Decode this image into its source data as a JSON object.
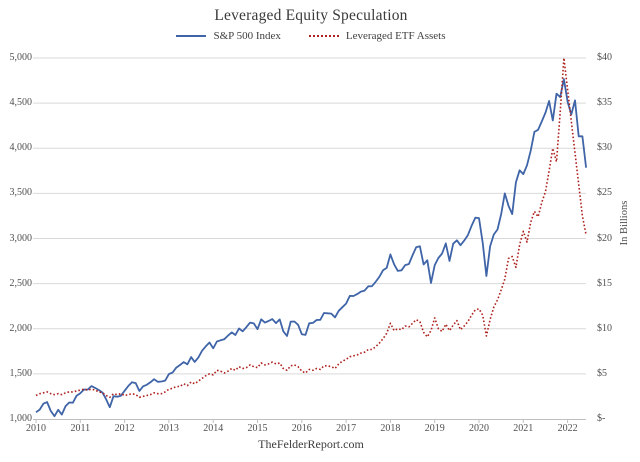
{
  "chart_data": {
    "type": "line",
    "title": "Leveraged Equity Speculation",
    "footer": "TheFelderReport.com",
    "x_unit": "monthly",
    "x_start": "2010-01",
    "x_end": "2022-06",
    "grid": true,
    "legend_position": "top",
    "colors": {
      "background": "#ffffff",
      "gridline": "#d9d9d9",
      "axis_line": "#bfbfbf",
      "tick_text": "#4f4f4f",
      "title_text": "#3a3a3a"
    },
    "x_ticks": [
      {
        "label": "2010",
        "year_index": 0
      },
      {
        "label": "2011",
        "year_index": 1
      },
      {
        "label": "2012",
        "year_index": 2
      },
      {
        "label": "2013",
        "year_index": 3
      },
      {
        "label": "2014",
        "year_index": 4
      },
      {
        "label": "2015",
        "year_index": 5
      },
      {
        "label": "2016",
        "year_index": 6
      },
      {
        "label": "2017",
        "year_index": 7
      },
      {
        "label": "2018",
        "year_index": 8
      },
      {
        "label": "2019",
        "year_index": 9
      },
      {
        "label": "2020",
        "year_index": 10
      },
      {
        "label": "2021",
        "year_index": 11
      },
      {
        "label": "2022",
        "year_index": 12
      }
    ],
    "left_axis": {
      "range": [
        1000,
        5000
      ],
      "ticks": [
        {
          "label": "5,000",
          "value": 5000
        },
        {
          "label": "4,500",
          "value": 4500
        },
        {
          "label": "4,000",
          "value": 4000
        },
        {
          "label": "3,500",
          "value": 3500
        },
        {
          "label": "3,000",
          "value": 3000
        },
        {
          "label": "2,500",
          "value": 2500
        },
        {
          "label": "2,000",
          "value": 2000
        },
        {
          "label": "1,500",
          "value": 1500
        },
        {
          "label": "1,000",
          "value": 1000
        }
      ]
    },
    "right_axis": {
      "label": "In Billions",
      "range": [
        0,
        40
      ],
      "ticks": [
        {
          "label": "$40",
          "value": 40
        },
        {
          "label": "$35",
          "value": 35
        },
        {
          "label": "$30",
          "value": 30
        },
        {
          "label": "$25",
          "value": 25
        },
        {
          "label": "$20",
          "value": 20
        },
        {
          "label": "$15",
          "value": 15
        },
        {
          "label": "$10",
          "value": 10
        },
        {
          "label": "$5",
          "value": 5
        },
        {
          "label": "$-",
          "value": 0
        }
      ]
    },
    "series": [
      {
        "name": "S&P 500 Index",
        "axis": "left",
        "style": "solid",
        "color": "#3f64a7",
        "values": [
          1074,
          1104,
          1169,
          1187,
          1089,
          1031,
          1102,
          1049,
          1141,
          1183,
          1181,
          1258,
          1286,
          1327,
          1326,
          1364,
          1345,
          1321,
          1292,
          1219,
          1131,
          1253,
          1247,
          1258,
          1312,
          1366,
          1408,
          1398,
          1310,
          1362,
          1379,
          1407,
          1441,
          1412,
          1416,
          1426,
          1498,
          1515,
          1569,
          1598,
          1631,
          1606,
          1686,
          1633,
          1682,
          1757,
          1806,
          1848,
          1783,
          1859,
          1872,
          1884,
          1924,
          1960,
          1931,
          2003,
          1972,
          2018,
          2068,
          2059,
          1995,
          2105,
          2068,
          2086,
          2107,
          2063,
          2104,
          1972,
          1920,
          2079,
          2080,
          2044,
          1940,
          1932,
          2060,
          2065,
          2097,
          2099,
          2174,
          2171,
          2168,
          2126,
          2199,
          2239,
          2279,
          2364,
          2363,
          2384,
          2412,
          2423,
          2470,
          2472,
          2519,
          2575,
          2648,
          2674,
          2824,
          2714,
          2641,
          2648,
          2705,
          2718,
          2816,
          2902,
          2914,
          2712,
          2760,
          2507,
          2704,
          2784,
          2834,
          2946,
          2752,
          2942,
          2980,
          2926,
          2977,
          3038,
          3141,
          3231,
          3226,
          2954,
          2585,
          2912,
          3044,
          3100,
          3271,
          3500,
          3363,
          3270,
          3622,
          3756,
          3714,
          3811,
          3973,
          4181,
          4204,
          4298,
          4395,
          4523,
          4308,
          4605,
          4567,
          4766,
          4516,
          4374,
          4530,
          4132,
          4132,
          3785
        ]
      },
      {
        "name": "Leveraged ETF Assets",
        "axis": "right",
        "style": "dotted",
        "color": "#ae231f",
        "values": [
          2.6,
          2.8,
          2.9,
          3.0,
          2.8,
          2.7,
          2.8,
          2.7,
          2.9,
          3.0,
          3.0,
          3.1,
          3.2,
          3.3,
          3.2,
          3.3,
          3.2,
          3.0,
          2.9,
          2.6,
          2.4,
          2.8,
          2.7,
          2.8,
          2.6,
          2.7,
          2.8,
          2.7,
          2.4,
          2.5,
          2.6,
          2.7,
          2.9,
          2.8,
          2.8,
          3.0,
          3.3,
          3.4,
          3.6,
          3.6,
          3.9,
          3.7,
          4.1,
          3.9,
          4.2,
          4.5,
          4.8,
          5.0,
          4.9,
          5.4,
          5.3,
          5.1,
          5.3,
          5.6,
          5.4,
          5.8,
          5.6,
          5.7,
          6.0,
          5.8,
          5.7,
          6.2,
          6.0,
          6.1,
          6.3,
          6.1,
          6.2,
          5.6,
          5.4,
          5.9,
          6.0,
          5.8,
          5.3,
          5.1,
          5.5,
          5.4,
          5.6,
          5.5,
          5.9,
          5.9,
          5.8,
          5.6,
          6.1,
          6.4,
          6.6,
          6.9,
          7.0,
          7.1,
          7.3,
          7.4,
          7.7,
          7.7,
          8.0,
          8.4,
          8.9,
          9.5,
          10.6,
          9.8,
          10.0,
          9.9,
          10.3,
          10.2,
          10.6,
          11.0,
          10.8,
          9.6,
          9.1,
          9.8,
          11.2,
          10.0,
          9.7,
          10.5,
          9.8,
          10.4,
          10.9,
          9.9,
          10.3,
          10.8,
          11.5,
          12.1,
          12.2,
          11.5,
          9.2,
          11.0,
          12.4,
          13.2,
          14.3,
          15.5,
          17.8,
          18.0,
          16.8,
          19.3,
          20.8,
          19.6,
          21.8,
          23.0,
          22.4,
          24.0,
          25.2,
          27.5,
          30.0,
          28.5,
          34.0,
          40.0,
          36.5,
          33.0,
          29.5,
          26.0,
          22.5,
          20.4
        ]
      }
    ]
  }
}
